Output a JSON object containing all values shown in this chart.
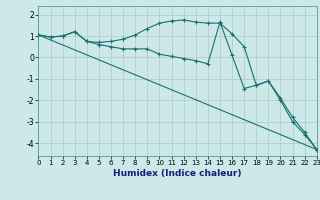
{
  "xlabel": "Humidex (Indice chaleur)",
  "ylabel": "",
  "background_color": "#cce8e8",
  "grid_color": "#b0c8c8",
  "line_color": "#1a7070",
  "xlim": [
    0,
    23
  ],
  "ylim": [
    -4.6,
    2.4
  ],
  "yticks": [
    2,
    1,
    0,
    -1,
    -2,
    -3,
    -4
  ],
  "xticks": [
    0,
    1,
    2,
    3,
    4,
    5,
    6,
    7,
    8,
    9,
    10,
    11,
    12,
    13,
    14,
    15,
    16,
    17,
    18,
    19,
    20,
    21,
    22,
    23
  ],
  "series": [
    {
      "x": [
        0,
        1,
        2,
        3,
        4,
        5,
        6,
        7,
        8,
        9,
        10,
        11,
        12,
        13,
        14,
        15,
        16,
        17,
        18,
        19,
        20,
        21,
        22,
        23
      ],
      "y": [
        1.05,
        0.95,
        1.0,
        1.2,
        0.75,
        0.7,
        0.75,
        0.85,
        1.05,
        1.35,
        1.6,
        1.7,
        1.75,
        1.65,
        1.6,
        1.6,
        1.1,
        0.5,
        -1.3,
        -1.1,
        -1.9,
        -2.8,
        -3.5,
        -4.3
      ]
    },
    {
      "x": [
        0,
        1,
        2,
        3,
        4,
        5,
        6,
        7,
        8,
        9,
        10,
        11,
        12,
        13,
        14,
        15,
        16,
        17,
        18,
        19,
        20,
        21,
        22,
        23
      ],
      "y": [
        1.05,
        0.95,
        1.0,
        1.2,
        0.75,
        0.6,
        0.5,
        0.4,
        0.4,
        0.4,
        0.15,
        0.05,
        -0.05,
        -0.15,
        -0.3,
        1.65,
        0.1,
        -1.45,
        -1.3,
        -1.1,
        -2.0,
        -3.0,
        -3.6,
        -4.3
      ]
    },
    {
      "x": [
        0,
        23
      ],
      "y": [
        1.05,
        -4.3
      ]
    }
  ]
}
